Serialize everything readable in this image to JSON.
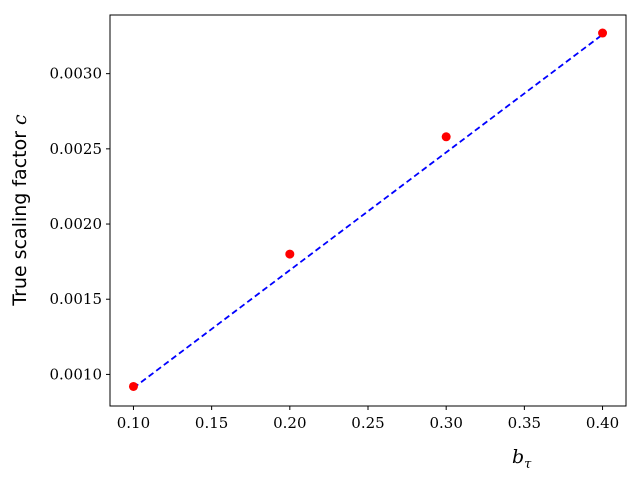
{
  "chart_data": {
    "type": "scatter",
    "xlabel": {
      "main": "b",
      "subscript": "τ"
    },
    "ylabel": {
      "prefix": "True scaling factor ",
      "symbol": "c"
    },
    "xlim": [
      0.085,
      0.415
    ],
    "ylim": [
      0.00079,
      0.00339
    ],
    "x_ticks": [
      0.1,
      0.15,
      0.2,
      0.25,
      0.3,
      0.35,
      0.4
    ],
    "x_tick_labels": [
      "0.10",
      "0.15",
      "0.20",
      "0.25",
      "0.30",
      "0.35",
      "0.40"
    ],
    "y_ticks": [
      0.001,
      0.0015,
      0.002,
      0.0025,
      0.003
    ],
    "y_tick_labels": [
      "0.0010",
      "0.0015",
      "0.0020",
      "0.0025",
      "0.0030"
    ],
    "grid": false,
    "series": [
      {
        "kind": "scatter",
        "color": "#ff0000",
        "x": [
          0.1,
          0.2,
          0.3,
          0.4
        ],
        "y": [
          0.00092,
          0.0018,
          0.00258,
          0.00327
        ]
      },
      {
        "kind": "dashed-line",
        "color": "#0000ff",
        "x": [
          0.1,
          0.4
        ],
        "y": [
          0.00091,
          0.00326
        ]
      }
    ]
  }
}
